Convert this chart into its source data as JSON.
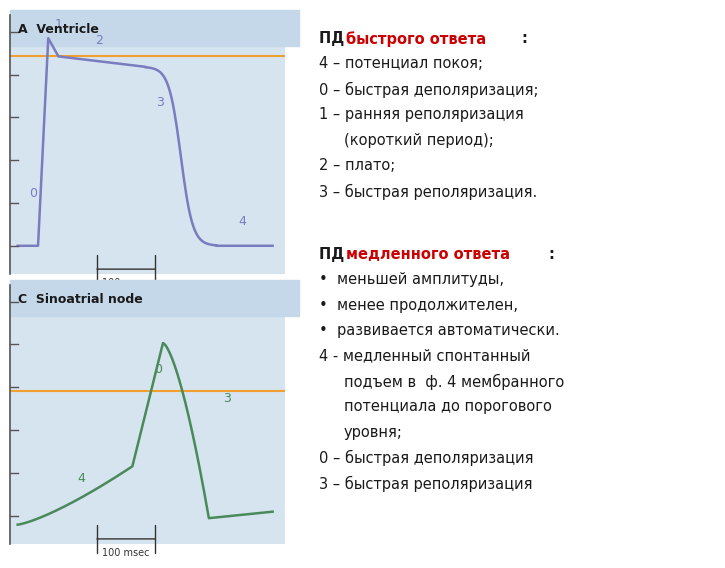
{
  "background_color": "#ffffff",
  "panel_bg_color": "#d6e4f0",
  "title_bg_color": "#c5d8ea",
  "ventricle_title": "A  Ventricle",
  "sinoatrial_title": "C  Sinoatrial node",
  "scale_label": "100 msec",
  "orange_line_color": "#f0a030",
  "ventricle_line_color": "#7b7bbf",
  "sinoatrial_line_color": "#4a8a5a",
  "text_black": "#1a1a1a",
  "text_red": "#cc0000"
}
